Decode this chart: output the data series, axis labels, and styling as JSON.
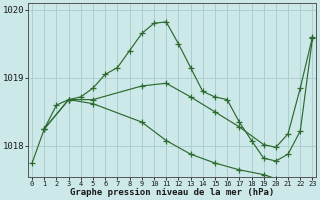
{
  "title": "Graphe pression niveau de la mer (hPa)",
  "line_color": "#2d6a2d",
  "bg_color": "#cce8e8",
  "grid_color": "#aad0d0",
  "figsize": [
    3.2,
    2.0
  ],
  "dpi": 100,
  "ylim_min": 1017.55,
  "ylim_max": 1020.1,
  "yticks": [
    1018,
    1019,
    1020
  ],
  "xlim_min": -0.3,
  "xlim_max": 23.3,
  "line1_x": [
    0,
    1,
    2,
    3,
    4,
    5,
    6,
    7,
    8,
    9,
    10,
    11,
    12,
    13,
    14,
    15,
    16,
    17,
    18,
    19,
    20,
    21,
    22,
    23
  ],
  "line1_y": [
    1017.75,
    1018.25,
    1018.6,
    1018.68,
    1018.72,
    1018.85,
    1019.05,
    1019.15,
    1019.4,
    1019.65,
    1019.8,
    1019.82,
    1019.5,
    1019.15,
    1018.8,
    1018.72,
    1018.68,
    1018.35,
    1018.08,
    1017.82,
    1017.78,
    1017.88,
    1018.22,
    1019.58
  ],
  "line2_x": [
    1,
    3,
    5,
    9,
    11,
    13,
    15,
    17,
    19,
    20,
    21,
    22,
    23
  ],
  "line2_y": [
    1018.25,
    1018.68,
    1018.62,
    1018.35,
    1018.08,
    1017.88,
    1017.75,
    1017.65,
    1017.58,
    1017.52,
    1017.48,
    1017.45,
    1017.45
  ],
  "line3_x": [
    1,
    3,
    5,
    9,
    11,
    13,
    15,
    17,
    19,
    20,
    21,
    22,
    23
  ],
  "line3_y": [
    1018.25,
    1018.68,
    1018.68,
    1018.88,
    1018.92,
    1018.72,
    1018.5,
    1018.28,
    1018.02,
    1017.98,
    1018.18,
    1018.85,
    1019.6
  ]
}
